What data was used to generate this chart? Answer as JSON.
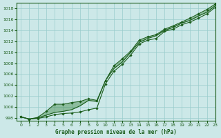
{
  "xlabel": "Graphe pression niveau de la mer (hPa)",
  "bg_color": "#cce8e8",
  "grid_color": "#99cccc",
  "line_color": "#1a5c1a",
  "fill_color": "#2d7a2d",
  "xlim": [
    -0.5,
    23
  ],
  "ylim": [
    997.5,
    1019
  ],
  "yticks": [
    998,
    1000,
    1002,
    1004,
    1006,
    1008,
    1010,
    1012,
    1014,
    1016,
    1018
  ],
  "xticks": [
    0,
    1,
    2,
    3,
    4,
    5,
    6,
    7,
    8,
    9,
    10,
    11,
    12,
    13,
    14,
    15,
    16,
    17,
    18,
    19,
    20,
    21,
    22,
    23
  ],
  "series_low": [
    998.2,
    997.8,
    997.9,
    998.2,
    998.6,
    998.8,
    998.9,
    999.1,
    999.5,
    999.8,
    1004.2,
    1006.5,
    1007.8,
    1009.5,
    1011.5,
    1012.2,
    1012.5,
    1013.8,
    1014.2,
    1015.0,
    1015.5,
    1016.2,
    1017.0,
    1018.2
  ],
  "series_mid": [
    998.2,
    997.8,
    998.0,
    998.5,
    999.0,
    999.2,
    999.5,
    1000.2,
    1001.2,
    1001.0,
    1004.8,
    1007.0,
    1008.2,
    1010.0,
    1011.8,
    1012.5,
    1013.0,
    1014.0,
    1014.5,
    1015.3,
    1015.8,
    1016.6,
    1017.3,
    1018.5
  ],
  "series_high": [
    998.2,
    997.8,
    998.1,
    999.2,
    1000.5,
    1000.5,
    1000.8,
    1001.0,
    1001.5,
    1001.2,
    1004.8,
    1007.5,
    1008.8,
    1010.2,
    1012.2,
    1012.8,
    1013.2,
    1014.2,
    1014.8,
    1015.5,
    1016.2,
    1017.0,
    1017.8,
    1018.8
  ]
}
